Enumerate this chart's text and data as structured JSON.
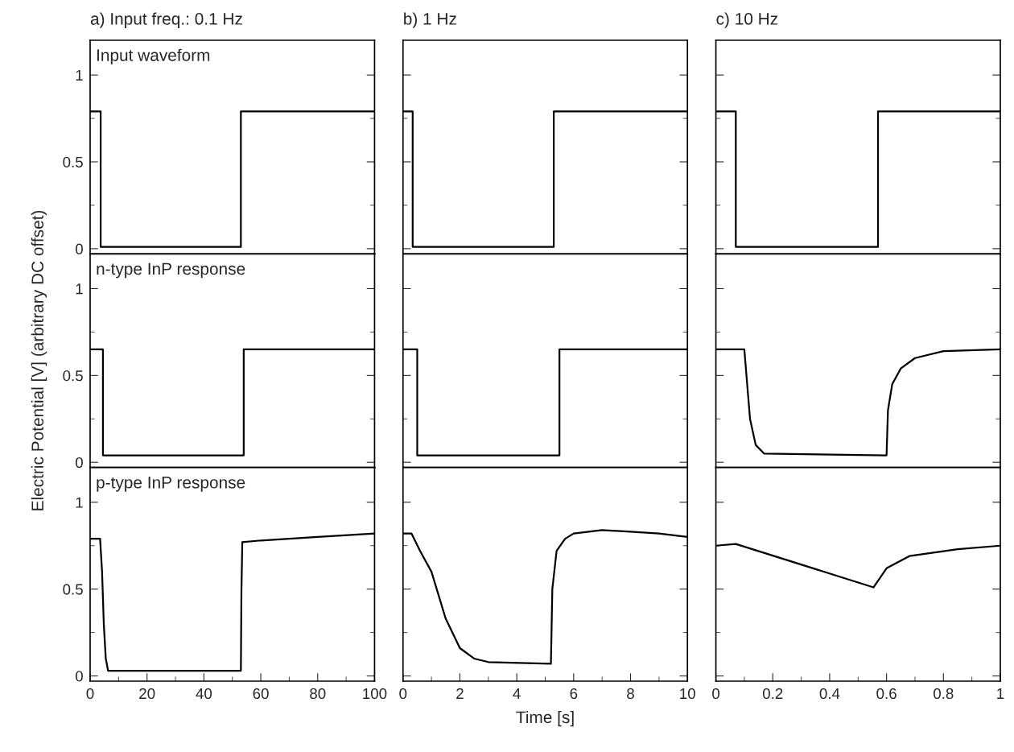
{
  "chart_data": [
    {
      "type": "line",
      "title": "a) Input freq.: 0.1 Hz",
      "annotations": [
        "Input waveform"
      ],
      "xlim": [
        0,
        100
      ],
      "xticks": [
        0,
        20,
        40,
        60,
        80,
        100
      ],
      "ylim": [
        -0.03,
        1.2
      ],
      "yticks": [
        0,
        0.5,
        1
      ],
      "tick_labels": "y",
      "x": [
        0,
        3.7,
        3.7,
        53,
        53,
        100
      ],
      "series": [
        {
          "color": "#000000",
          "values": [
            0.79,
            0.79,
            0.01,
            0.01,
            0.79,
            0.79
          ]
        }
      ]
    },
    {
      "type": "line",
      "title": "b) 1 Hz",
      "xlim": [
        0,
        10
      ],
      "xticks": [
        0,
        2,
        4,
        6,
        8,
        10
      ],
      "ylim": [
        -0.03,
        1.2
      ],
      "yticks": [
        0,
        0.5,
        1
      ],
      "tick_labels": false,
      "x": [
        0,
        0.34,
        0.34,
        5.3,
        5.3,
        10
      ],
      "series": [
        {
          "color": "#000000",
          "values": [
            0.79,
            0.79,
            0.01,
            0.01,
            0.79,
            0.79
          ]
        }
      ]
    },
    {
      "type": "line",
      "title": "c) 10 Hz",
      "xlim": [
        0,
        1
      ],
      "xticks": [
        0,
        0.2,
        0.4,
        0.6,
        0.8,
        1
      ],
      "ylim": [
        -0.03,
        1.2
      ],
      "yticks": [
        0,
        0.5,
        1
      ],
      "tick_labels": false,
      "x": [
        0,
        0.07,
        0.07,
        0.57,
        0.57,
        1
      ],
      "series": [
        {
          "color": "#000000",
          "values": [
            0.79,
            0.79,
            0.01,
            0.01,
            0.79,
            0.79
          ]
        }
      ]
    },
    {
      "type": "line",
      "annotations": [
        "n-type InP response"
      ],
      "ylabel": "Electric Potential [V] (arbitrary DC offset)",
      "xlim": [
        0,
        100
      ],
      "xticks": [
        0,
        20,
        40,
        60,
        80,
        100
      ],
      "ylim": [
        -0.03,
        1.2
      ],
      "yticks": [
        0,
        0.5,
        1
      ],
      "tick_labels": "y",
      "x": [
        0,
        4.5,
        4.5,
        54,
        54,
        100
      ],
      "series": [
        {
          "color": "#000000",
          "values": [
            0.65,
            0.65,
            0.04,
            0.04,
            0.65,
            0.65
          ]
        }
      ]
    },
    {
      "type": "line",
      "xlim": [
        0,
        10
      ],
      "xticks": [
        0,
        2,
        4,
        6,
        8,
        10
      ],
      "ylim": [
        -0.03,
        1.2
      ],
      "yticks": [
        0,
        0.5,
        1
      ],
      "tick_labels": false,
      "x": [
        0,
        0.5,
        0.5,
        5.5,
        5.5,
        10
      ],
      "series": [
        {
          "color": "#000000",
          "values": [
            0.65,
            0.65,
            0.04,
            0.04,
            0.65,
            0.65
          ]
        }
      ]
    },
    {
      "type": "line",
      "xlim": [
        0,
        1
      ],
      "xticks": [
        0,
        0.2,
        0.4,
        0.6,
        0.8,
        1
      ],
      "ylim": [
        -0.03,
        1.2
      ],
      "yticks": [
        0,
        0.5,
        1
      ],
      "tick_labels": false,
      "x": [
        0,
        0.1,
        0.12,
        0.14,
        0.17,
        0.6,
        0.605,
        0.62,
        0.65,
        0.7,
        0.8,
        1
      ],
      "series": [
        {
          "color": "#000000",
          "values": [
            0.65,
            0.65,
            0.25,
            0.1,
            0.05,
            0.04,
            0.3,
            0.45,
            0.54,
            0.6,
            0.64,
            0.65
          ]
        }
      ]
    },
    {
      "type": "line",
      "annotations": [
        "p-type InP response"
      ],
      "xlim": [
        0,
        100
      ],
      "xticks": [
        0,
        20,
        40,
        60,
        80,
        100
      ],
      "ylim": [
        -0.03,
        1.2
      ],
      "yticks": [
        0,
        0.5,
        1
      ],
      "x": [
        0,
        3.5,
        4.2,
        4.8,
        5.5,
        6.3,
        53,
        53.2,
        53.5,
        60,
        80,
        100
      ],
      "series": [
        {
          "color": "#000000",
          "values": [
            0.79,
            0.79,
            0.6,
            0.3,
            0.1,
            0.03,
            0.03,
            0.5,
            0.77,
            0.78,
            0.8,
            0.82
          ]
        }
      ]
    },
    {
      "type": "line",
      "xlabel": "Time [s]",
      "xlim": [
        0,
        10
      ],
      "xticks": [
        0,
        2,
        4,
        6,
        8,
        10
      ],
      "ylim": [
        -0.03,
        1.2
      ],
      "yticks": [
        0,
        0.5,
        1
      ],
      "tick_labels": "x",
      "x": [
        0,
        0.3,
        0.6,
        1,
        1.5,
        2,
        2.5,
        3,
        5.2,
        5.25,
        5.4,
        5.7,
        6,
        7,
        8,
        9,
        10
      ],
      "series": [
        {
          "color": "#000000",
          "values": [
            0.82,
            0.82,
            0.72,
            0.6,
            0.33,
            0.16,
            0.1,
            0.08,
            0.07,
            0.5,
            0.72,
            0.79,
            0.82,
            0.84,
            0.83,
            0.82,
            0.8
          ]
        }
      ]
    },
    {
      "type": "line",
      "xlim": [
        0,
        1
      ],
      "xticks": [
        0,
        0.2,
        0.4,
        0.6,
        0.8,
        1
      ],
      "ylim": [
        -0.03,
        1.2
      ],
      "yticks": [
        0,
        0.5,
        1
      ],
      "tick_labels": "x",
      "x": [
        0,
        0.07,
        0.554,
        0.6,
        0.68,
        0.85,
        1
      ],
      "series": [
        {
          "color": "#000000",
          "values": [
            0.75,
            0.76,
            0.51,
            0.62,
            0.69,
            0.73,
            0.75
          ]
        }
      ]
    }
  ]
}
